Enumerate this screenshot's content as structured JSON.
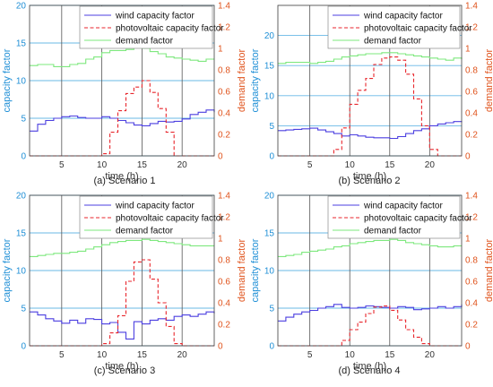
{
  "colors": {
    "wind": "#4b3fe0",
    "pv": "#e8262c",
    "demand": "#7ee87e",
    "left_axis": "#1f8fd6",
    "right_axis": "#e0531c",
    "grid": "#68b8e6",
    "vgrid": "#555555",
    "frame": "#3c3c3c"
  },
  "chart_data": [
    {
      "type": "line",
      "caption": "(a) Scenario 1",
      "xlabel": "time (h)",
      "ylabel": "capacity factor",
      "y2label": "demand factor",
      "xlim": [
        1,
        24
      ],
      "ylim": [
        0,
        20
      ],
      "y2lim": [
        0,
        1.4
      ],
      "xticks": [
        5,
        10,
        15,
        20
      ],
      "yticks": [
        0,
        5,
        10,
        15,
        20
      ],
      "y2ticks": [
        0,
        0.2,
        0.4,
        0.6,
        0.8,
        1,
        1.2,
        1.4
      ],
      "x": [
        1,
        2,
        3,
        4,
        5,
        6,
        7,
        8,
        9,
        10,
        11,
        12,
        13,
        14,
        15,
        16,
        17,
        18,
        19,
        20,
        21,
        22,
        23,
        24
      ],
      "series": [
        {
          "name": "wind capacity factor",
          "axis": "left",
          "style": "solid",
          "color_key": "wind",
          "values": [
            3.3,
            4.2,
            4.7,
            5.0,
            5.2,
            5.3,
            5.1,
            5.0,
            5.0,
            5.2,
            5.0,
            4.7,
            4.4,
            4.1,
            4.0,
            4.3,
            4.6,
            4.5,
            4.6,
            4.9,
            5.5,
            5.8,
            6.1,
            5.8
          ]
        },
        {
          "name": "photovoltaic capacity factor",
          "axis": "right",
          "style": "dashed",
          "color_key": "pv",
          "values": [
            0,
            0,
            0,
            0,
            0,
            0,
            0,
            0,
            0,
            0.02,
            0.22,
            0.42,
            0.58,
            0.64,
            0.7,
            0.59,
            0.44,
            0.22,
            0,
            0,
            0,
            0,
            0,
            0
          ]
        },
        {
          "name": "demand factor",
          "axis": "right",
          "style": "solid",
          "color_key": "demand",
          "values": [
            0.84,
            0.85,
            0.85,
            0.83,
            0.83,
            0.85,
            0.86,
            0.9,
            0.92,
            0.96,
            0.98,
            0.98,
            0.99,
            1.01,
            1.0,
            0.97,
            0.95,
            0.92,
            0.91,
            0.9,
            0.89,
            0.88,
            0.9,
            0.9
          ]
        }
      ]
    },
    {
      "type": "line",
      "caption": "(b) Scenario 2",
      "xlabel": "time (h)",
      "ylabel": "capacity factor",
      "y2label": "demand factor",
      "xlim": [
        1,
        24
      ],
      "ylim": [
        0,
        25
      ],
      "y2lim": [
        0,
        1.4
      ],
      "xticks": [
        5,
        10,
        15,
        20
      ],
      "yticks": [
        0,
        5,
        10,
        15,
        20
      ],
      "y2ticks": [
        0,
        0.2,
        0.4,
        0.6,
        0.8,
        1,
        1.2,
        1.4
      ],
      "x": [
        1,
        2,
        3,
        4,
        5,
        6,
        7,
        8,
        9,
        10,
        11,
        12,
        13,
        14,
        15,
        16,
        17,
        18,
        19,
        20,
        21,
        22,
        23,
        24
      ],
      "series": [
        {
          "name": "wind capacity factor",
          "axis": "left",
          "style": "solid",
          "color_key": "wind",
          "values": [
            4.2,
            4.3,
            4.4,
            4.5,
            4.6,
            4.3,
            4.0,
            3.7,
            3.3,
            3.5,
            3.3,
            3.1,
            3.0,
            3.0,
            2.9,
            3.2,
            3.7,
            4.2,
            4.5,
            5.0,
            5.3,
            5.5,
            5.7,
            5.6
          ]
        },
        {
          "name": "photovoltaic capacity factor",
          "axis": "right",
          "style": "dashed",
          "color_key": "pv",
          "values": [
            0,
            0,
            0,
            0,
            0,
            0,
            0,
            0.06,
            0.26,
            0.48,
            0.61,
            0.72,
            0.85,
            0.91,
            0.92,
            0.89,
            0.76,
            0.53,
            0.28,
            0.06,
            0,
            0,
            0,
            0
          ]
        },
        {
          "name": "demand factor",
          "axis": "right",
          "style": "solid",
          "color_key": "demand",
          "values": [
            0.86,
            0.87,
            0.87,
            0.87,
            0.86,
            0.87,
            0.88,
            0.9,
            0.92,
            0.93,
            0.94,
            0.95,
            0.95,
            0.96,
            0.96,
            0.95,
            0.94,
            0.93,
            0.92,
            0.91,
            0.9,
            0.89,
            0.91,
            0.9
          ]
        }
      ]
    },
    {
      "type": "line",
      "caption": "(c) Scenario 3",
      "xlabel": "time (h)",
      "ylabel": "capacity factor",
      "y2label": "demand factor",
      "xlim": [
        1,
        24
      ],
      "ylim": [
        0,
        20
      ],
      "y2lim": [
        0,
        1.4
      ],
      "xticks": [
        5,
        10,
        15,
        20
      ],
      "yticks": [
        0,
        5,
        10,
        15,
        20
      ],
      "y2ticks": [
        0,
        0.2,
        0.4,
        0.6,
        0.8,
        1,
        1.2,
        1.4
      ],
      "x": [
        1,
        2,
        3,
        4,
        5,
        6,
        7,
        8,
        9,
        10,
        11,
        12,
        13,
        14,
        15,
        16,
        17,
        18,
        19,
        20,
        21,
        22,
        23,
        24
      ],
      "series": [
        {
          "name": "wind capacity factor",
          "axis": "left",
          "style": "solid",
          "color_key": "wind",
          "values": [
            4.5,
            4.1,
            3.6,
            3.3,
            3.0,
            3.4,
            3.0,
            3.6,
            3.5,
            2.9,
            3.1,
            1.8,
            0.9,
            3.2,
            2.9,
            3.4,
            3.6,
            3.4,
            3.9,
            4.1,
            3.9,
            4.2,
            4.5,
            4.3
          ]
        },
        {
          "name": "photovoltaic capacity factor",
          "axis": "right",
          "style": "dashed",
          "color_key": "pv",
          "values": [
            0,
            0,
            0,
            0,
            0,
            0,
            0,
            0,
            0,
            0.02,
            0.12,
            0.28,
            0.6,
            0.78,
            0.8,
            0.62,
            0.4,
            0.18,
            0.02,
            0,
            0,
            0,
            0,
            0
          ]
        },
        {
          "name": "demand factor",
          "axis": "right",
          "style": "solid",
          "color_key": "demand",
          "values": [
            0.83,
            0.84,
            0.85,
            0.86,
            0.86,
            0.87,
            0.88,
            0.9,
            0.92,
            0.94,
            0.96,
            0.97,
            0.98,
            0.98,
            0.99,
            0.98,
            0.97,
            0.96,
            0.95,
            0.94,
            0.93,
            0.93,
            0.93,
            0.93
          ]
        }
      ]
    },
    {
      "type": "line",
      "caption": "(d) Scenario 4",
      "xlabel": "time (h)",
      "ylabel": "capacity factor",
      "y2label": "demand factor",
      "xlim": [
        1,
        24
      ],
      "ylim": [
        0,
        20
      ],
      "y2lim": [
        0,
        1.4
      ],
      "xticks": [
        5,
        10,
        15,
        20
      ],
      "yticks": [
        0,
        5,
        10,
        15,
        20
      ],
      "y2ticks": [
        0,
        0.2,
        0.4,
        0.6,
        0.8,
        1,
        1.2,
        1.4
      ],
      "x": [
        1,
        2,
        3,
        4,
        5,
        6,
        7,
        8,
        9,
        10,
        11,
        12,
        13,
        14,
        15,
        16,
        17,
        18,
        19,
        20,
        21,
        22,
        23,
        24
      ],
      "series": [
        {
          "name": "wind capacity factor",
          "axis": "left",
          "style": "solid",
          "color_key": "wind",
          "values": [
            3.3,
            3.8,
            4.2,
            4.5,
            4.7,
            5.0,
            5.2,
            5.5,
            5.1,
            5.0,
            5.1,
            5.3,
            5.2,
            5.1,
            5.0,
            5.2,
            5.1,
            4.8,
            4.9,
            5.0,
            5.2,
            5.0,
            5.2,
            5.5
          ]
        },
        {
          "name": "photovoltaic capacity factor",
          "axis": "right",
          "style": "dashed",
          "color_key": "pv",
          "values": [
            0,
            0,
            0,
            0,
            0,
            0,
            0,
            0,
            0.05,
            0.15,
            0.22,
            0.3,
            0.36,
            0.37,
            0.33,
            0.24,
            0.15,
            0.08,
            0.02,
            0,
            0,
            0,
            0,
            0
          ]
        },
        {
          "name": "demand factor",
          "axis": "right",
          "style": "solid",
          "color_key": "demand",
          "values": [
            0.83,
            0.84,
            0.85,
            0.87,
            0.88,
            0.89,
            0.9,
            0.92,
            0.93,
            0.95,
            0.96,
            0.97,
            0.98,
            0.98,
            0.99,
            0.98,
            0.96,
            0.95,
            0.94,
            0.93,
            0.92,
            0.92,
            0.93,
            0.93
          ]
        }
      ]
    }
  ]
}
